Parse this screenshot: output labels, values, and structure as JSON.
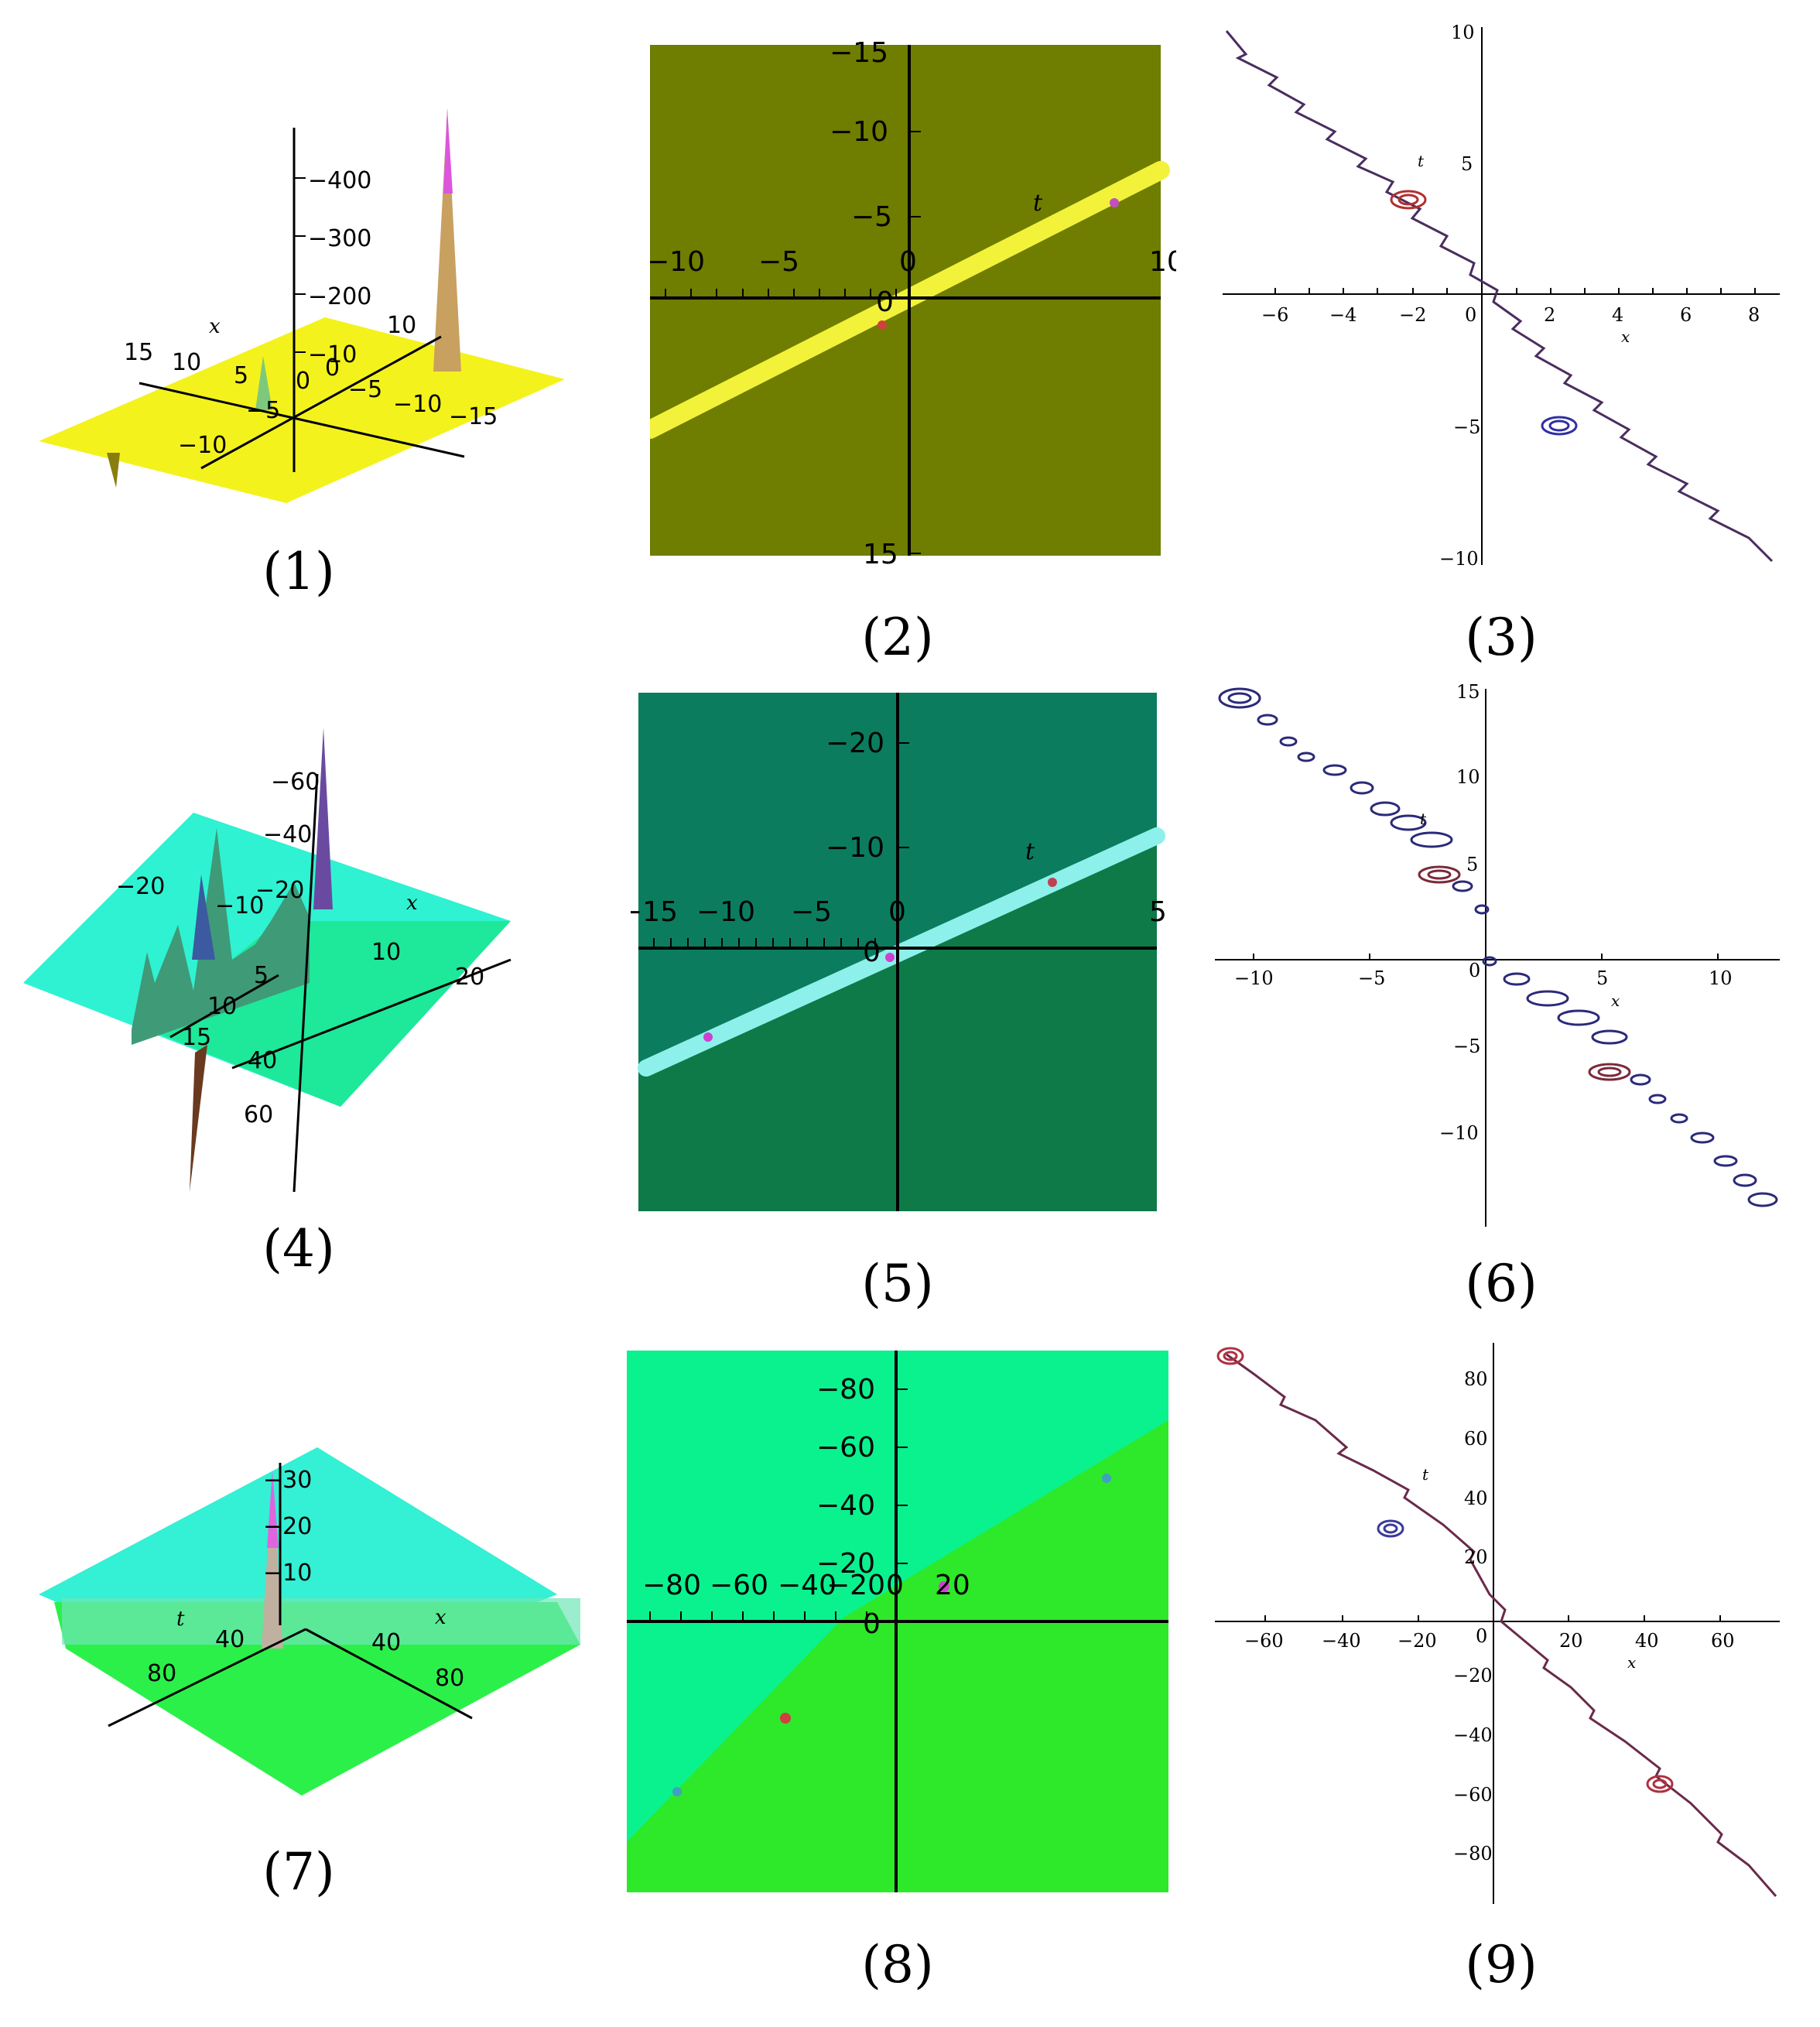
{
  "panels": [
    {
      "id": "p1",
      "caption": "(1)",
      "type": "surface3d",
      "axis_labels": {
        "x": "x"
      },
      "z_ticks": [
        "−400",
        "−300",
        "−200",
        "−10"
      ],
      "x_ticks": [
        "15",
        "10",
        "5",
        "0",
        "−5",
        "−10"
      ],
      "y_ticks": [
        "10",
        "0",
        "−5",
        "−10",
        "−15"
      ],
      "colors": {
        "plane": "#f4f21c",
        "peak": "#cc66cc"
      }
    },
    {
      "id": "p2",
      "caption": "(2)",
      "type": "density",
      "axis_labels": {
        "t": "t"
      },
      "x_ticks": [
        "−10",
        "−5",
        "0",
        "10"
      ],
      "y_ticks": [
        "−15",
        "−10",
        "−5",
        "0",
        "15"
      ],
      "colors": {
        "bg": "#6f7d00",
        "stripe": "#f2f23a"
      }
    },
    {
      "id": "p3",
      "caption": "(3)",
      "type": "contour",
      "axis_labels": {
        "t": "t",
        "x": "x"
      },
      "x_ticks": [
        "−6",
        "−4",
        "−2",
        "0",
        "2",
        "4",
        "6",
        "8"
      ],
      "y_ticks": [
        "10",
        "5",
        "−5",
        "−10"
      ]
    },
    {
      "id": "p4",
      "caption": "(4)",
      "type": "surface3d",
      "axis_labels": {
        "x": "x"
      },
      "z_ticks": [
        "−60",
        "−40",
        "−20",
        "40",
        "60"
      ],
      "x_ticks": [
        "−20",
        "−10",
        "10",
        "20"
      ],
      "y_ticks": [
        "5",
        "10",
        "15"
      ],
      "colors": {
        "plane": "#2ff2d2",
        "plane2": "#1ee89a"
      }
    },
    {
      "id": "p5",
      "caption": "(5)",
      "type": "density",
      "axis_labels": {
        "t": "t"
      },
      "x_ticks": [
        "−15",
        "−10",
        "−5",
        "0",
        "5"
      ],
      "y_ticks": [
        "−20",
        "−10",
        "0"
      ],
      "colors": {
        "bg": "#0b7d5e",
        "bg2": "#0d7a48",
        "stripe": "#8ef0ea"
      }
    },
    {
      "id": "p6",
      "caption": "(6)",
      "type": "contour",
      "axis_labels": {
        "t": "t",
        "x": "x"
      },
      "x_ticks": [
        "−10",
        "−5",
        "0",
        "5",
        "10"
      ],
      "y_ticks": [
        "15",
        "10",
        "5",
        "−5",
        "−10"
      ]
    },
    {
      "id": "p7",
      "caption": "(7)",
      "type": "surface3d",
      "axis_labels": {
        "t": "t",
        "x": "x"
      },
      "z_ticks": [
        "−30",
        "−20",
        "−10"
      ],
      "t_ticks": [
        "80",
        "40"
      ],
      "x_ticks": [
        "40",
        "80"
      ],
      "colors": {
        "plane": "#34f0d4",
        "plane2": "#2cf04a"
      }
    },
    {
      "id": "p8",
      "caption": "(8)",
      "type": "density",
      "x_ticks": [
        "−80",
        "−60",
        "−40",
        "−20",
        "0",
        "20"
      ],
      "y_ticks": [
        "−80",
        "−60",
        "−40",
        "−20",
        "0"
      ],
      "colors": {
        "bg": "#09f28e",
        "bg2": "#2ee82a"
      }
    },
    {
      "id": "p9",
      "caption": "(9)",
      "type": "contour",
      "axis_labels": {
        "t": "t",
        "x": "x"
      },
      "x_ticks": [
        "−60",
        "−40",
        "−20",
        "0",
        "20",
        "40",
        "60"
      ],
      "y_ticks": [
        "80",
        "60",
        "40",
        "20",
        "−20",
        "−40",
        "−60",
        "−80"
      ]
    }
  ]
}
